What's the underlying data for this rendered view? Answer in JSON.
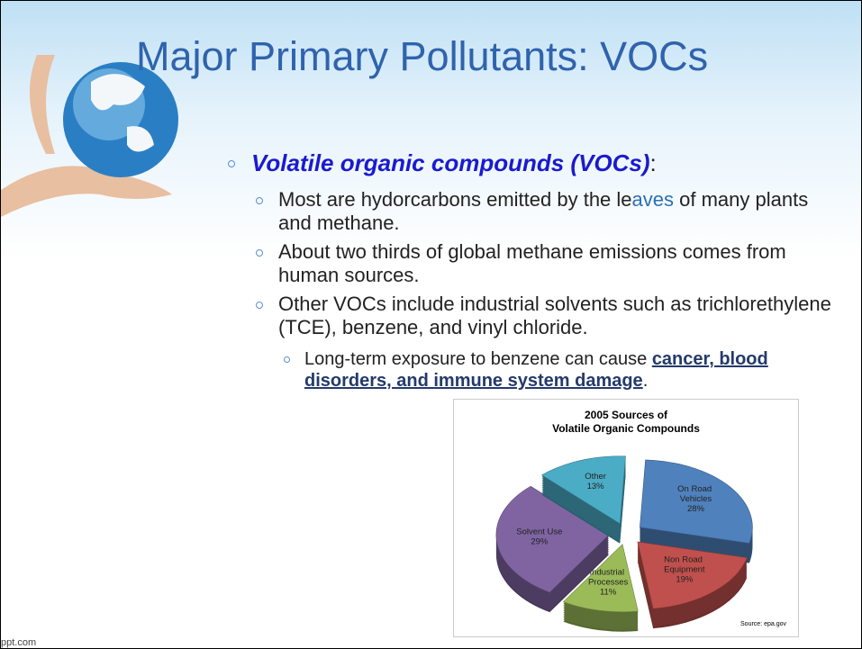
{
  "slide": {
    "title": "Major Primary Pollutants:  VOCs",
    "bullets": [
      {
        "level": 1,
        "parts": [
          {
            "text": "Volatile organic compounds (VOCs)",
            "style": "emph"
          },
          {
            "text": ":"
          }
        ]
      },
      {
        "level": 2,
        "parts": [
          {
            "text": "Most are hydorcarbons emitted by the le"
          },
          {
            "text": "aves",
            "style": "tint"
          },
          {
            "text": " of many plants and methane."
          }
        ]
      },
      {
        "level": 2,
        "parts": [
          {
            "text": "About two thirds of global methane emissions comes from human sources."
          }
        ]
      },
      {
        "level": 2,
        "parts": [
          {
            "text": "Other VOCs include industrial solvents such as trichlorethylene (TCE), benzene, and vinyl chloride."
          }
        ]
      },
      {
        "level": 3,
        "parts": [
          {
            "text": "Long-term exposure to benzene can cause "
          },
          {
            "text": "cancer, blood disorders, and immune system damage",
            "style": "link"
          },
          {
            "text": "."
          }
        ]
      }
    ],
    "footer": "ppt.com"
  },
  "chart": {
    "type": "pie",
    "title": [
      "2005 Sources of",
      "Volatile Organic Compounds"
    ],
    "categories": [
      "On Road Vehicles",
      "Non Road Equipment",
      "Industrial Processes",
      "Solvent Use",
      "Other"
    ],
    "values": [
      28,
      19,
      11,
      29,
      13
    ],
    "value_labels": [
      "28%",
      "19%",
      "11%",
      "29%",
      "13%"
    ],
    "colors": [
      "#4f81bd",
      "#c0504d",
      "#9bbb59",
      "#8064a2",
      "#4bacc6"
    ],
    "source": "Source: epa.gov"
  }
}
